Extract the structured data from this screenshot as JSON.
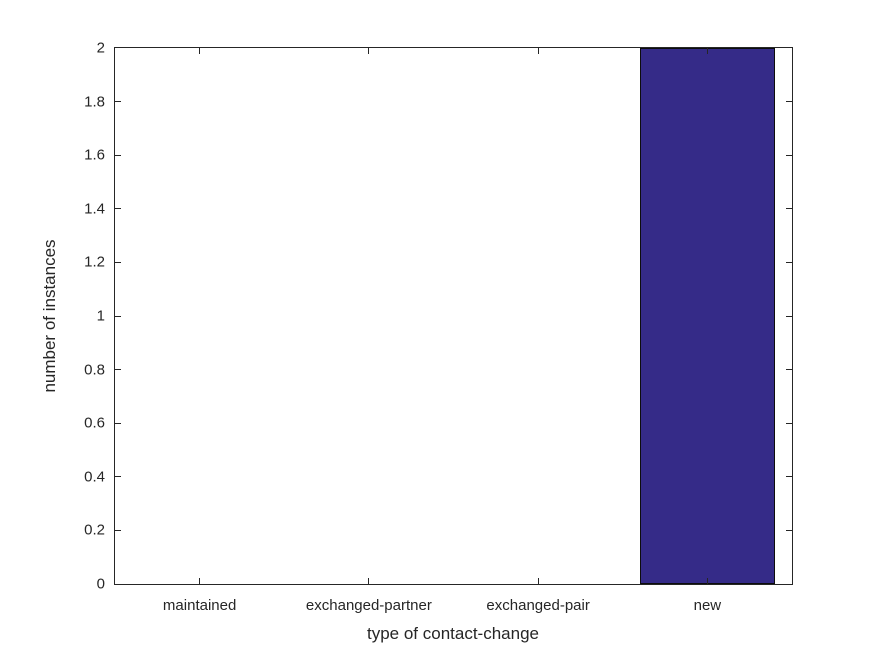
{
  "chart_data": {
    "type": "bar",
    "categories": [
      "maintained",
      "exchanged-partner",
      "exchanged-pair",
      "new"
    ],
    "values": [
      0,
      0,
      0,
      2
    ],
    "xlabel": "type of contact-change",
    "ylabel": "number of instances",
    "ylim": [
      0,
      2
    ],
    "ytick_step": 0.2,
    "ytick_labels": [
      "0",
      "0.2",
      "0.4",
      "0.6",
      "0.8",
      "1",
      "1.2",
      "1.4",
      "1.6",
      "1.8",
      "2"
    ],
    "grid": false,
    "legend": false,
    "box": true,
    "tick_direction": "in",
    "bar_width_fraction": 0.8,
    "colors": {
      "bar_fill": "#352B88",
      "bar_edge": "#0d0d0d",
      "axis": "#262626",
      "text": "#262626",
      "background": "#ffffff"
    }
  }
}
